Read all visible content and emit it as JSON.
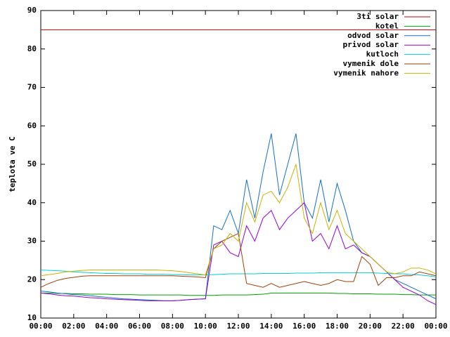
{
  "chart_data": {
    "type": "line",
    "ylabel": "teplota ve C",
    "legend": "top-right",
    "x": [
      0,
      0.5,
      1,
      1.5,
      2,
      2.5,
      3,
      3.5,
      4,
      4.5,
      5,
      5.5,
      6,
      6.5,
      7,
      7.5,
      8,
      8.5,
      9,
      9.5,
      10,
      10.5,
      11,
      11.5,
      12,
      12.5,
      13,
      13.5,
      14,
      14.5,
      15,
      15.5,
      16,
      16.5,
      17,
      17.5,
      18,
      18.5,
      19,
      19.5,
      20,
      20.5,
      21,
      21.5,
      22,
      22.5,
      23,
      23.5,
      24
    ],
    "xlim": [
      0,
      24
    ],
    "xticks": [
      {
        "value": 0,
        "label": "00:00"
      },
      {
        "value": 2,
        "label": "02:00"
      },
      {
        "value": 4,
        "label": "04:00"
      },
      {
        "value": 6,
        "label": "06:00"
      },
      {
        "value": 8,
        "label": "08:00"
      },
      {
        "value": 10,
        "label": "10:00"
      },
      {
        "value": 12,
        "label": "12:00"
      },
      {
        "value": 14,
        "label": "14:00"
      },
      {
        "value": 16,
        "label": "16:00"
      },
      {
        "value": 18,
        "label": "18:00"
      },
      {
        "value": 20,
        "label": "20:00"
      },
      {
        "value": 22,
        "label": "22:00"
      },
      {
        "value": 24,
        "label": "00:00"
      }
    ],
    "ylim": [
      10,
      90
    ],
    "yticks": [
      10,
      20,
      30,
      40,
      50,
      60,
      70,
      80,
      90
    ],
    "series": [
      {
        "name": "3ti solar",
        "color": "#cc0000",
        "values": [
          85,
          85,
          85,
          85,
          85,
          85,
          85,
          85,
          85,
          85,
          85,
          85,
          85,
          85,
          85,
          85,
          85,
          85,
          85,
          85,
          85,
          85,
          85,
          85,
          85,
          85,
          85,
          85,
          85,
          85,
          85,
          85,
          85,
          85,
          85,
          85,
          85,
          85,
          85,
          85,
          85,
          85,
          85,
          85,
          85,
          85,
          85,
          85,
          85
        ]
      },
      {
        "name": "kotel",
        "color": "#00a000",
        "values": [
          16.5,
          16.5,
          16.4,
          16.4,
          16.3,
          16.3,
          16.2,
          16.2,
          16.2,
          16.1,
          16.1,
          16.1,
          16,
          16,
          16,
          16,
          16,
          16,
          15.9,
          15.9,
          15.9,
          15.9,
          16,
          16,
          16,
          16,
          16.1,
          16.2,
          16.5,
          16.5,
          16.5,
          16.5,
          16.5,
          16.5,
          16.5,
          16.5,
          16.4,
          16.4,
          16.3,
          16.3,
          16.3,
          16.2,
          16.2,
          16.2,
          16.1,
          16.1,
          16,
          16,
          16
        ]
      },
      {
        "name": "odvod solar",
        "color": "#1470c8",
        "values": [
          17,
          16.8,
          16.5,
          16.3,
          16.1,
          16,
          15.8,
          15.6,
          15.4,
          15.2,
          15,
          14.9,
          14.8,
          14.7,
          14.6,
          14.5,
          14.5,
          14.6,
          14.8,
          14.9,
          15,
          34,
          33,
          38,
          32,
          46,
          36,
          48,
          58,
          42,
          50,
          58,
          40,
          36,
          46,
          35,
          45,
          38,
          30,
          27,
          26,
          24,
          22,
          20,
          19,
          18,
          17,
          16,
          15
        ]
      },
      {
        "name": "privod solar",
        "color": "#9400d3",
        "values": [
          16.5,
          16.3,
          16,
          15.8,
          15.7,
          15.5,
          15.3,
          15.2,
          15,
          14.9,
          14.8,
          14.7,
          14.6,
          14.5,
          14.5,
          14.5,
          14.5,
          14.6,
          14.8,
          14.9,
          15,
          29,
          30,
          27,
          26,
          34,
          30,
          36,
          38,
          33,
          36,
          38,
          40,
          30,
          32,
          28,
          34,
          28,
          29,
          27,
          26,
          24,
          22,
          20,
          18,
          17,
          16,
          14.5,
          13.5
        ]
      },
      {
        "name": "kutloch",
        "color": "#00d0d0",
        "values": [
          22.5,
          22.4,
          22.3,
          22.2,
          22,
          21.9,
          21.8,
          21.7,
          21.6,
          21.6,
          21.5,
          21.5,
          21.5,
          21.4,
          21.4,
          21.4,
          21.3,
          21.3,
          21.2,
          21.2,
          21.2,
          21.3,
          21.4,
          21.5,
          21.5,
          21.5,
          21.5,
          21.6,
          21.6,
          21.6,
          21.6,
          21.7,
          21.7,
          21.7,
          21.8,
          21.8,
          21.8,
          21.8,
          21.8,
          21.8,
          21.8,
          21.7,
          21.6,
          21.5,
          21.5,
          21.3,
          21.2,
          21,
          20.7
        ]
      },
      {
        "name": "vymenik dole",
        "color": "#a0400a",
        "values": [
          18,
          19,
          19.8,
          20.3,
          20.6,
          20.9,
          21,
          21,
          21,
          21,
          21,
          21,
          21,
          21,
          21,
          21,
          21,
          20.9,
          20.8,
          20.7,
          20.5,
          28,
          30,
          31,
          32,
          19,
          18.5,
          18,
          19,
          18,
          18.5,
          19,
          19.5,
          19,
          18.5,
          19,
          20,
          19.5,
          19.5,
          26,
          24,
          18.5,
          20.5,
          20.5,
          21,
          21,
          22,
          21.5,
          21
        ]
      },
      {
        "name": "vymenik nahore",
        "color": "#c8b400",
        "values": [
          21,
          21.3,
          21.6,
          22,
          22.2,
          22.4,
          22.5,
          22.5,
          22.5,
          22.5,
          22.5,
          22.5,
          22.5,
          22.5,
          22.5,
          22.4,
          22.3,
          22.1,
          21.8,
          21.5,
          21.2,
          28,
          29,
          32,
          30,
          40,
          35,
          42,
          43,
          40,
          44,
          50,
          36,
          32,
          40,
          33,
          38,
          32,
          30,
          28,
          26,
          24,
          22,
          21.5,
          22,
          23,
          23,
          22.5,
          21.5
        ]
      }
    ]
  }
}
